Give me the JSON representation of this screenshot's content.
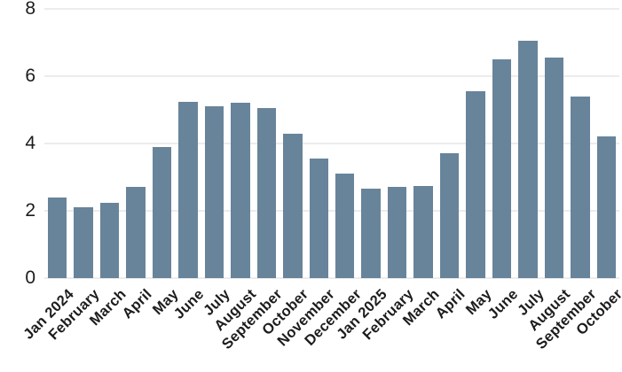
{
  "chart_data": {
    "type": "bar",
    "title": "",
    "xlabel": "",
    "ylabel": "",
    "categories": [
      "Jan 2024",
      "February",
      "March",
      "April",
      "May",
      "June",
      "July",
      "August",
      "September",
      "October",
      "November",
      "December",
      "Jan 2025",
      "February",
      "March",
      "April",
      "May",
      "June",
      "July",
      "August",
      "September",
      "October"
    ],
    "values": [
      2.4,
      2.1,
      2.25,
      2.7,
      3.9,
      5.25,
      5.1,
      5.2,
      5.05,
      4.3,
      3.55,
      3.1,
      2.65,
      2.7,
      2.75,
      3.7,
      5.55,
      6.5,
      7.05,
      6.55,
      5.4,
      4.2
    ],
    "ylim": [
      0,
      8
    ],
    "yticks": [
      0,
      2,
      4,
      6,
      8
    ],
    "grid": true,
    "legend": "none",
    "x_label_rotation_deg": 45,
    "colors": {
      "bar": "#68849a",
      "gridline": "#ececec",
      "axis_text": "#1c1c1c",
      "background": "#ffffff"
    }
  }
}
